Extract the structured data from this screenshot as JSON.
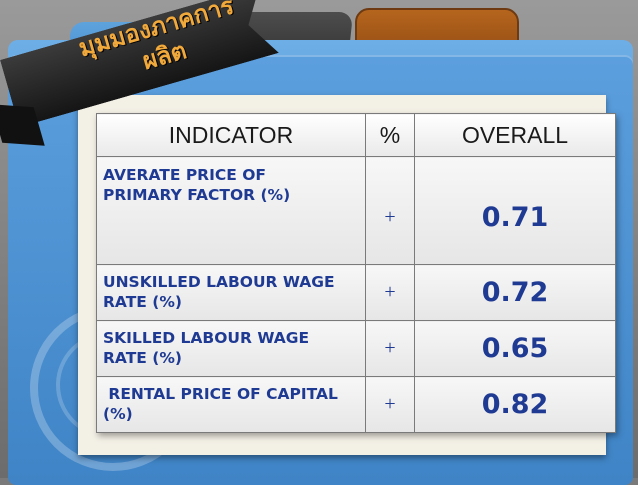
{
  "banner": {
    "line1": "มุมมองภาคการ",
    "line2": "ผลิต"
  },
  "table": {
    "headers": {
      "indicator": "INDICATOR",
      "percent": "%",
      "overall": "OVERALL"
    },
    "rows": [
      {
        "indicator_line1": "AVERATE PRICE OF",
        "indicator_line2": "PRIMARY FACTOR (%)",
        "sign": "+",
        "overall": "0.71"
      },
      {
        "indicator_line1": "UNSKILLED LABOUR WAGE",
        "indicator_line2": "RATE (%)",
        "sign": "+",
        "overall": "0.72"
      },
      {
        "indicator_line1": "SKILLED LABOUR WAGE",
        "indicator_line2": "RATE (%)",
        "sign": "+",
        "overall": "0.65"
      },
      {
        "indicator_line1": " RENTAL PRICE OF CAPITAL",
        "indicator_line2": "(%)",
        "sign": "+",
        "overall": "0.82"
      }
    ]
  },
  "colors": {
    "folder_blue": "#4b92d2",
    "banner_text": "#f2a93b",
    "table_text": "#1f3a93"
  }
}
